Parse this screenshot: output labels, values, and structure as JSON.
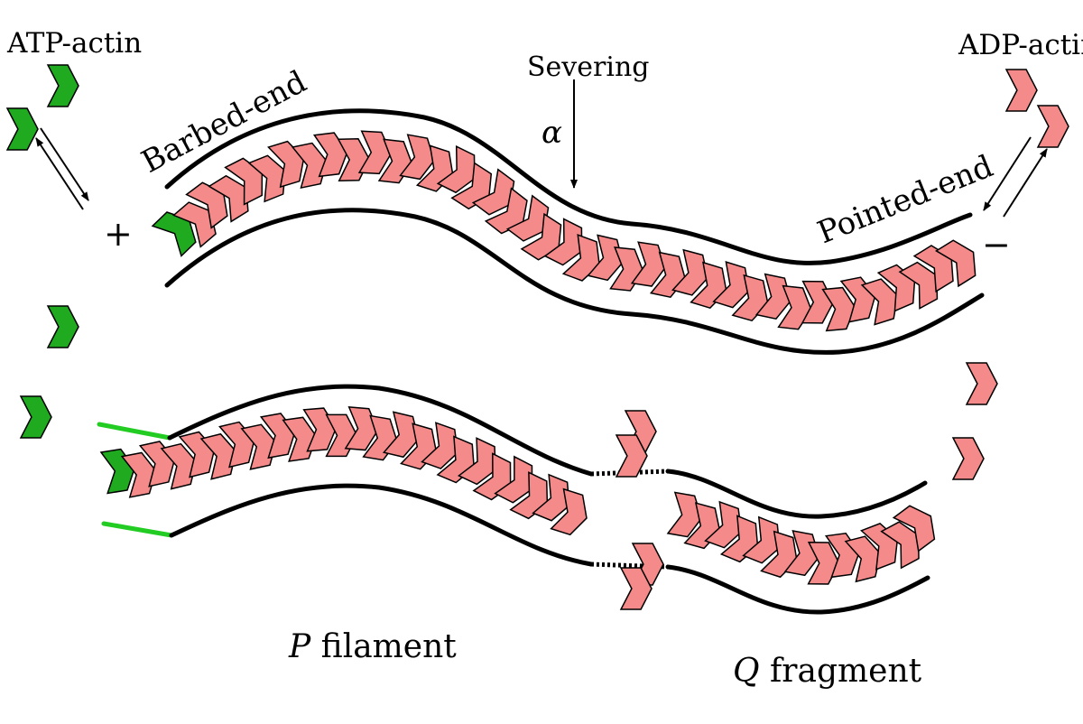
{
  "labels": {
    "atp_actin": "ATP-actin",
    "adp_actin": "ADP-actin",
    "barbed_end": "Barbed-end",
    "pointed_end": "Pointed-end",
    "severing": "Severing",
    "alpha": "α",
    "plus": "+",
    "minus": "−",
    "p_letter": "P",
    "p_rest": " filament",
    "q_letter": "Q",
    "q_rest": " fragment"
  },
  "colors": {
    "atp_monomer": "#1faa1f",
    "adp_monomer": "#f58a8a",
    "tube": "#000000",
    "barbed_cap": "#22cc22"
  }
}
